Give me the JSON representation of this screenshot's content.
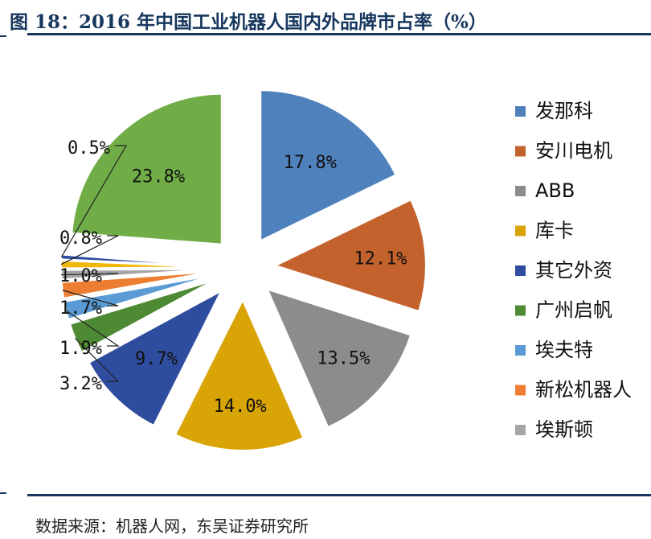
{
  "header": {
    "title": "图 18：2016 年中国工业机器人国内外品牌市占率（%）"
  },
  "footer": {
    "source": "数据来源：机器人网，东吴证券研究所"
  },
  "chart_data": {
    "type": "pie",
    "title": "2016 年中国工业机器人国内外品牌市占率（%）",
    "unit": "%",
    "legend_position": "right",
    "slices": [
      {
        "name": "发那科",
        "value": 17.8,
        "label": "17.8%",
        "color": "#4f81bd"
      },
      {
        "name": "安川电机",
        "value": 12.1,
        "label": "12.1%",
        "color": "#c4622d"
      },
      {
        "name": "ABB",
        "value": 13.5,
        "label": "13.5%",
        "color": "#8c8c8c"
      },
      {
        "name": "库卡",
        "value": 14.0,
        "label": "14.0%",
        "color": "#d9a406"
      },
      {
        "name": "其它外资",
        "value": 9.7,
        "label": "9.7%",
        "color": "#2f4d9e"
      },
      {
        "name": "广州启帆",
        "value": 3.2,
        "label": "3.2%",
        "color": "#4e8a34"
      },
      {
        "name": "埃夫特",
        "value": 1.9,
        "label": "1.9%",
        "color": "#5b9bd5"
      },
      {
        "name": "新松机器人",
        "value": 1.7,
        "label": "1.7%",
        "color": "#ed7d31"
      },
      {
        "name": "埃斯顿",
        "value": 1.0,
        "label": "1.0%",
        "color": "#a5a5a5"
      },
      {
        "name": "",
        "value": 0.8,
        "label": "0.8%",
        "color": "#f2b705"
      },
      {
        "name": "",
        "value": 0.5,
        "label": "0.5%",
        "color": "#2f4d9e"
      },
      {
        "name": "",
        "value": 23.8,
        "label": "23.8%",
        "color": "#70ad47"
      }
    ]
  }
}
